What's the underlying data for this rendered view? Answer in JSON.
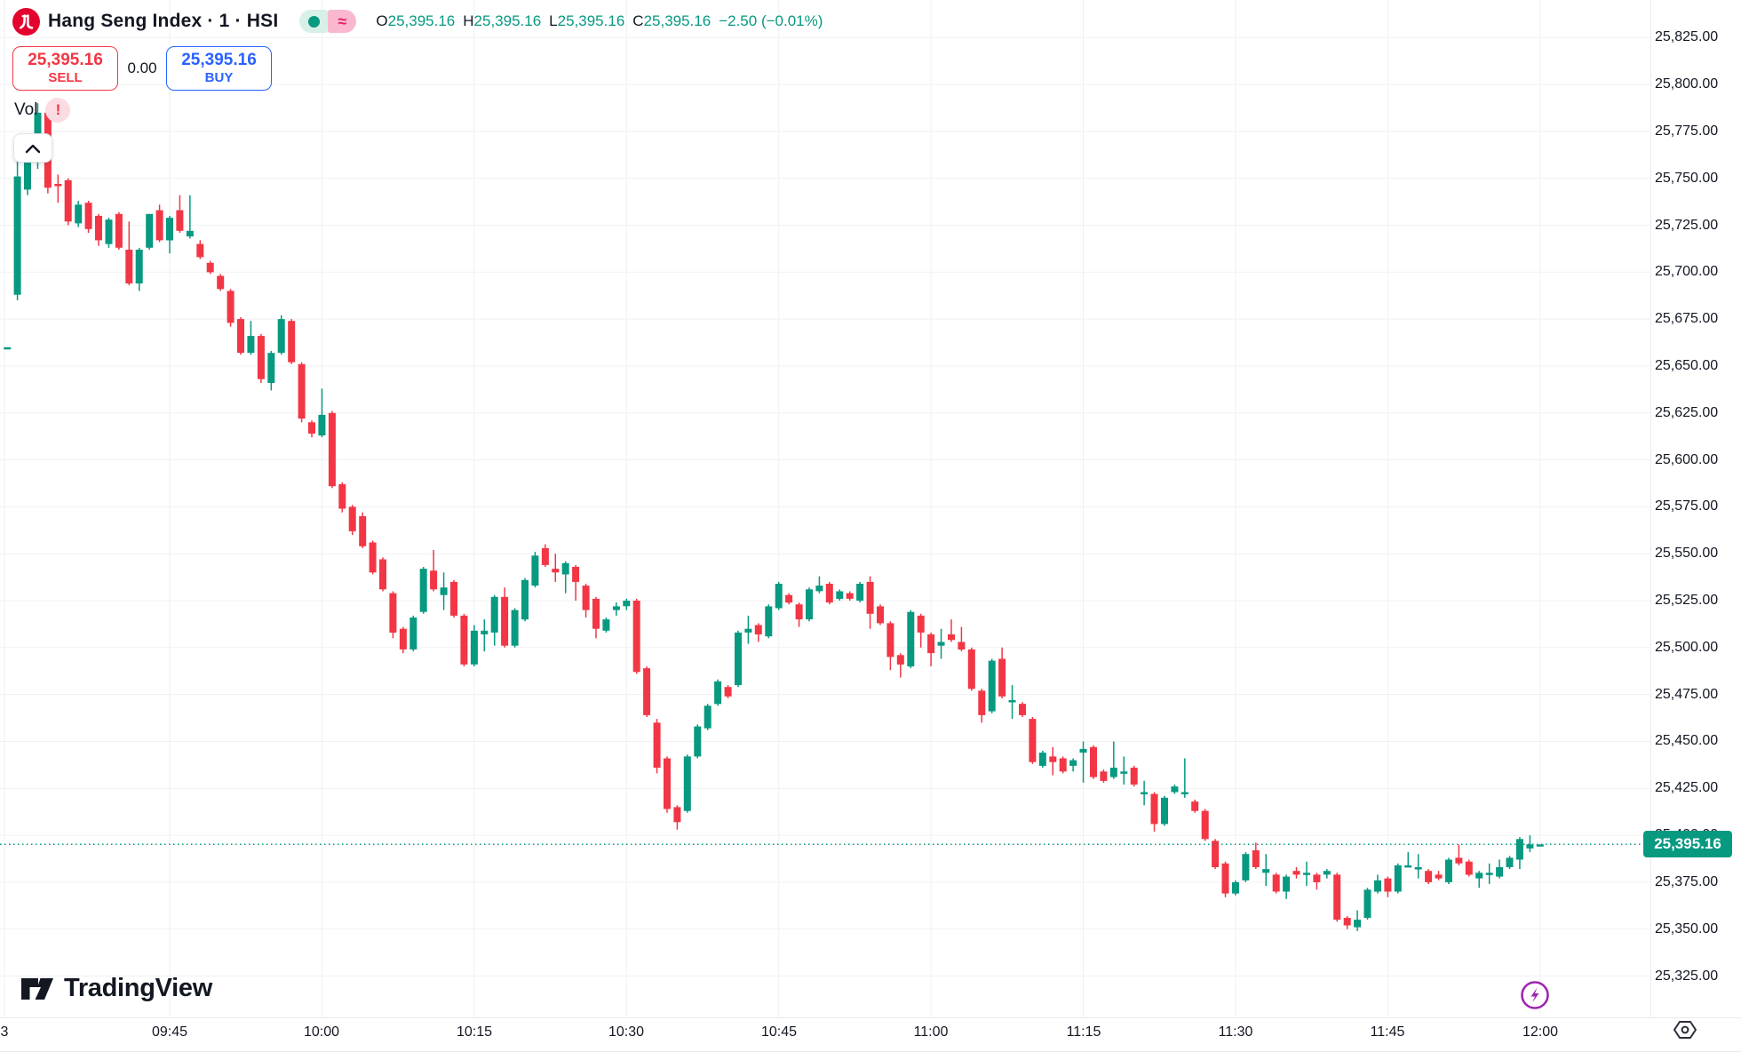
{
  "header": {
    "symbol_title": "Hang Seng Index · 1 · HSI",
    "status_chips": {
      "open_chip": "market-open",
      "delay_glyph": "≈"
    },
    "ohlc": {
      "o_label": "O",
      "o": "25,395.16",
      "h_label": "H",
      "h": "25,395.16",
      "l_label": "L",
      "l": "25,395.16",
      "c_label": "C",
      "c": "25,395.16",
      "change": "−2.50 (−0.01%)"
    }
  },
  "trade_panel": {
    "sell_price": "25,395.16",
    "sell_label": "SELL",
    "spread": "0.00",
    "buy_price": "25,395.16",
    "buy_label": "BUY"
  },
  "indicator": {
    "label": "Vol",
    "warning": "!"
  },
  "collapse_button": "chevron-up",
  "watermark": "TradingView",
  "price_axis": {
    "labels": [
      "25,825.00",
      "25,800.00",
      "25,775.00",
      "25,750.00",
      "25,725.00",
      "25,700.00",
      "25,675.00",
      "25,650.00",
      "25,625.00",
      "25,600.00",
      "25,575.00",
      "25,550.00",
      "25,525.00",
      "25,500.00",
      "25,475.00",
      "25,450.00",
      "25,425.00",
      "25,400.00",
      "25,375.00",
      "25,350.00",
      "25,325.00"
    ],
    "last_price_label": "25,395.16"
  },
  "time_axis": {
    "labels": [
      {
        "text": "3",
        "m": -1.28
      },
      {
        "text": "09:45",
        "m": 15
      },
      {
        "text": "10:00",
        "m": 30
      },
      {
        "text": "10:15",
        "m": 45
      },
      {
        "text": "10:30",
        "m": 60
      },
      {
        "text": "10:45",
        "m": 75
      },
      {
        "text": "11:00",
        "m": 90
      },
      {
        "text": "11:15",
        "m": 105
      },
      {
        "text": "11:30",
        "m": 120
      },
      {
        "text": "11:45",
        "m": 135
      },
      {
        "text": "12:00",
        "m": 150
      }
    ]
  },
  "colors": {
    "up": "#089981",
    "down": "#f23645",
    "buy": "#2962ff",
    "sell": "#f23645",
    "grid": "#f0f1f5",
    "accent_purple": "#9c27b0",
    "logo_red": "#e4032e"
  },
  "chart_data": {
    "type": "candlestick",
    "title": "Hang Seng Index",
    "symbol": "HSI",
    "interval": "1",
    "session_start": "09:30",
    "ylim": [
      25303,
      25845
    ],
    "grid": true,
    "last_price": 25395.16,
    "last_change": -2.5,
    "last_change_pct": -0.01,
    "candles": [
      [
        "09:29",
        25660,
        25660,
        25660,
        25660
      ],
      [
        "09:30",
        25688,
        25760,
        25685,
        25751
      ],
      [
        "09:31",
        25744,
        25769,
        25741,
        25759
      ],
      [
        "09:32",
        25759,
        25790,
        25755,
        25785
      ],
      [
        "09:33",
        25785,
        25788,
        25742,
        25745
      ],
      [
        "09:34",
        25747,
        25752,
        25737,
        25746
      ],
      [
        "09:35",
        25749,
        25750,
        25725,
        25727
      ],
      [
        "09:36",
        25726,
        25738,
        25724,
        25736
      ],
      [
        "09:37",
        25737,
        25738,
        25721,
        25723
      ],
      [
        "09:38",
        25730,
        25731,
        25714,
        25717
      ],
      [
        "09:39",
        25715,
        25729,
        25713,
        25728
      ],
      [
        "09:40",
        25731,
        25732,
        25712,
        25713
      ],
      [
        "09:41",
        25712,
        25727,
        25693,
        25694
      ],
      [
        "09:42",
        25694,
        25713,
        25690,
        25712
      ],
      [
        "09:43",
        25713,
        25731,
        25712,
        25731
      ],
      [
        "09:44",
        25733,
        25736,
        25716,
        25717
      ],
      [
        "09:45",
        25717,
        25730,
        25710,
        25729
      ],
      [
        "09:46",
        25733,
        25741,
        25721,
        25722
      ],
      [
        "09:47",
        25719,
        25741,
        25718,
        25722
      ],
      [
        "09:48",
        25715,
        25717,
        25707,
        25708
      ],
      [
        "09:49",
        25705,
        25706,
        25699,
        25700
      ],
      [
        "09:50",
        25698,
        25699,
        25690,
        25691
      ],
      [
        "09:51",
        25690,
        25691,
        25671,
        25673
      ],
      [
        "09:52",
        25675,
        25676,
        25656,
        25657
      ],
      [
        "09:53",
        25657,
        25674,
        25656,
        25666
      ],
      [
        "09:54",
        25666,
        25667,
        25641,
        25643
      ],
      [
        "09:55",
        25641,
        25658,
        25637,
        25657
      ],
      [
        "09:56",
        25657,
        25677,
        25656,
        25675
      ],
      [
        "09:57",
        25674,
        25675,
        25651,
        25652
      ],
      [
        "09:58",
        25651,
        25652,
        25620,
        25622
      ],
      [
        "09:59",
        25620,
        25621,
        25612,
        25614
      ],
      [
        "10:00",
        25613,
        25638,
        25612,
        25624
      ],
      [
        "10:01",
        25625,
        25626,
        25585,
        25586
      ],
      [
        "10:02",
        25587,
        25588,
        25572,
        25574
      ],
      [
        "10:03",
        25575,
        25576,
        25560,
        25562
      ],
      [
        "10:04",
        25570,
        25572,
        25553,
        25554
      ],
      [
        "10:05",
        25556,
        25557,
        25539,
        25540
      ],
      [
        "10:06",
        25547,
        25548,
        25530,
        25531
      ],
      [
        "10:07",
        25529,
        25530,
        25505,
        25508
      ],
      [
        "10:08",
        25510,
        25511,
        25497,
        25499
      ],
      [
        "10:09",
        25499,
        25517,
        25498,
        25516
      ],
      [
        "10:10",
        25519,
        25543,
        25518,
        25542
      ],
      [
        "10:11",
        25541,
        25552,
        25530,
        25531
      ],
      [
        "10:12",
        25528,
        25540,
        25520,
        25532
      ],
      [
        "10:13",
        25535,
        25536,
        25516,
        25517
      ],
      [
        "10:14",
        25517,
        25518,
        25490,
        25491
      ],
      [
        "10:15",
        25491,
        25512,
        25490,
        25509
      ],
      [
        "10:16",
        25507,
        25515,
        25498,
        25509
      ],
      [
        "10:17",
        25508,
        25528,
        25501,
        25527
      ],
      [
        "10:18",
        25527,
        25532,
        25500,
        25501
      ],
      [
        "10:19",
        25501,
        25521,
        25500,
        25520
      ],
      [
        "10:20",
        25515,
        25537,
        25514,
        25536
      ],
      [
        "10:21",
        25533,
        25551,
        25532,
        25549
      ],
      [
        "10:22",
        25553,
        25555,
        25543,
        25544
      ],
      [
        "10:23",
        25542,
        25550,
        25535,
        25540
      ],
      [
        "10:24",
        25539,
        25546,
        25529,
        25545
      ],
      [
        "10:25",
        25543,
        25544,
        25525,
        25535
      ],
      [
        "10:26",
        25533,
        25534,
        25516,
        25520
      ],
      [
        "10:27",
        25526,
        25527,
        25505,
        25510
      ],
      [
        "10:28",
        25509,
        25516,
        25508,
        25515
      ],
      [
        "10:29",
        25520,
        25524,
        25517,
        25522
      ],
      [
        "10:30",
        25522,
        25526,
        25520,
        25525
      ],
      [
        "10:31",
        25525,
        25526,
        25486,
        25487
      ],
      [
        "10:32",
        25489,
        25490,
        25463,
        25464
      ],
      [
        "10:33",
        25460,
        25462,
        25433,
        25436
      ],
      [
        "10:34",
        25441,
        25442,
        25412,
        25414
      ],
      [
        "10:35",
        25415,
        25416,
        25403,
        25407
      ],
      [
        "10:36",
        25413,
        25443,
        25412,
        25442
      ],
      [
        "10:37",
        25442,
        25459,
        25441,
        25458
      ],
      [
        "10:38",
        25457,
        25470,
        25456,
        25469
      ],
      [
        "10:39",
        25470,
        25483,
        25469,
        25482
      ],
      [
        "10:40",
        25479,
        25480,
        25473,
        25474
      ],
      [
        "10:41",
        25480,
        25509,
        25479,
        25508
      ],
      [
        "10:42",
        25508,
        25517,
        25502,
        25510
      ],
      [
        "10:43",
        25512,
        25513,
        25503,
        25507
      ],
      [
        "10:44",
        25506,
        25523,
        25505,
        25522
      ],
      [
        "10:45",
        25521,
        25535,
        25520,
        25534
      ],
      [
        "10:46",
        25528,
        25529,
        25523,
        25524
      ],
      [
        "10:47",
        25523,
        25524,
        25511,
        25515
      ],
      [
        "10:48",
        25515,
        25532,
        25514,
        25531
      ],
      [
        "10:49",
        25530,
        25538,
        25529,
        25533
      ],
      [
        "10:50",
        25534,
        25535,
        25523,
        25524
      ],
      [
        "10:51",
        25526,
        25531,
        25525,
        25530
      ],
      [
        "10:52",
        25529,
        25530,
        25525,
        25526
      ],
      [
        "10:53",
        25525,
        25535,
        25524,
        25534
      ],
      [
        "10:54",
        25535,
        25538,
        25510,
        25518
      ],
      [
        "10:55",
        25522,
        25523,
        25512,
        25513
      ],
      [
        "10:56",
        25513,
        25514,
        25488,
        25495
      ],
      [
        "10:57",
        25496,
        25497,
        25484,
        25491
      ],
      [
        "10:58",
        25490,
        25520,
        25489,
        25519
      ],
      [
        "10:59",
        25517,
        25518,
        25500,
        25508
      ],
      [
        "11:00",
        25507,
        25508,
        25490,
        25497
      ],
      [
        "11:01",
        25501,
        25510,
        25494,
        25503
      ],
      [
        "11:02",
        25507,
        25515,
        25503,
        25504
      ],
      [
        "11:03",
        25503,
        25511,
        25498,
        25499
      ],
      [
        "11:04",
        25499,
        25500,
        25477,
        25478
      ],
      [
        "11:05",
        25477,
        25478,
        25460,
        25464
      ],
      [
        "11:06",
        25466,
        25494,
        25465,
        25493
      ],
      [
        "11:07",
        25494,
        25500,
        25473,
        25474
      ],
      [
        "11:08",
        25471,
        25480,
        25462,
        25472
      ],
      [
        "11:09",
        25470,
        25471,
        25463,
        25464
      ],
      [
        "11:10",
        25462,
        25463,
        25438,
        25439
      ],
      [
        "11:11",
        25437,
        25445,
        25436,
        25444
      ],
      [
        "11:12",
        25442,
        25447,
        25432,
        25439
      ],
      [
        "11:13",
        25441,
        25442,
        25433,
        25434
      ],
      [
        "11:14",
        25437,
        25441,
        25434,
        25440
      ],
      [
        "11:15",
        25444,
        25450,
        25428,
        25446
      ],
      [
        "11:16",
        25447,
        25448,
        25430,
        25431
      ],
      [
        "11:17",
        25434,
        25435,
        25428,
        25429
      ],
      [
        "11:18",
        25431,
        25450,
        25430,
        25436
      ],
      [
        "11:19",
        25434,
        25442,
        25427,
        25434
      ],
      [
        "11:20",
        25436,
        25437,
        25426,
        25427
      ],
      [
        "11:21",
        25423,
        25429,
        25416,
        25423
      ],
      [
        "11:22",
        25422,
        25423,
        25402,
        25406
      ],
      [
        "11:23",
        25406,
        25421,
        25405,
        25420
      ],
      [
        "11:24",
        25423,
        25427,
        25422,
        25426
      ],
      [
        "11:25",
        25423,
        25441,
        25420,
        25423
      ],
      [
        "11:26",
        25418,
        25419,
        25412,
        25413
      ],
      [
        "11:27",
        25413,
        25414,
        25397,
        25398
      ],
      [
        "11:28",
        25397,
        25398,
        25382,
        25383
      ],
      [
        "11:29",
        25385,
        25386,
        25367,
        25369
      ],
      [
        "11:30",
        25369,
        25376,
        25368,
        25375
      ],
      [
        "11:31",
        25376,
        25391,
        25375,
        25390
      ],
      [
        "11:32",
        25392,
        25396,
        25382,
        25383
      ],
      [
        "11:33",
        25380,
        25390,
        25373,
        25382
      ],
      [
        "11:34",
        25379,
        25380,
        25369,
        25370
      ],
      [
        "11:35",
        25370,
        25379,
        25366,
        25378
      ],
      [
        "11:36",
        25381,
        25383,
        25377,
        25379
      ],
      [
        "11:37",
        25380,
        25386,
        25373,
        25380
      ],
      [
        "11:38",
        25379,
        25380,
        25371,
        25375
      ],
      [
        "11:39",
        25379,
        25382,
        25377,
        25381
      ],
      [
        "11:40",
        25379,
        25380,
        25354,
        25355
      ],
      [
        "11:41",
        25356,
        25357,
        25350,
        25352
      ],
      [
        "11:42",
        25351,
        25360,
        25349,
        25355
      ],
      [
        "11:43",
        25356,
        25372,
        25355,
        25371
      ],
      [
        "11:44",
        25370,
        25379,
        25369,
        25376
      ],
      [
        "11:45",
        25377,
        25378,
        25367,
        25370
      ],
      [
        "11:46",
        25370,
        25385,
        25369,
        25384
      ],
      [
        "11:47",
        25384,
        25391,
        25383,
        25384
      ],
      [
        "11:48",
        25383,
        25390,
        25377,
        25383
      ],
      [
        "11:49",
        25381,
        25382,
        25374,
        25375
      ],
      [
        "11:50",
        25379,
        25381,
        25376,
        25377
      ],
      [
        "11:51",
        25375,
        25388,
        25374,
        25387
      ],
      [
        "11:52",
        25388,
        25395,
        25384,
        25385
      ],
      [
        "11:53",
        25386,
        25387,
        25378,
        25379
      ],
      [
        "11:54",
        25377,
        25381,
        25372,
        25380
      ],
      [
        "11:55",
        25380,
        25385,
        25374,
        25380
      ],
      [
        "11:56",
        25378,
        25387,
        25377,
        25383
      ],
      [
        "11:57",
        25383,
        25389,
        25382,
        25388
      ],
      [
        "11:58",
        25387,
        25399,
        25382,
        25398
      ],
      [
        "11:59",
        25393,
        25400,
        25391,
        25395.16
      ],
      [
        "12:00",
        25395.16,
        25395.16,
        25395.16,
        25395.16
      ]
    ]
  }
}
